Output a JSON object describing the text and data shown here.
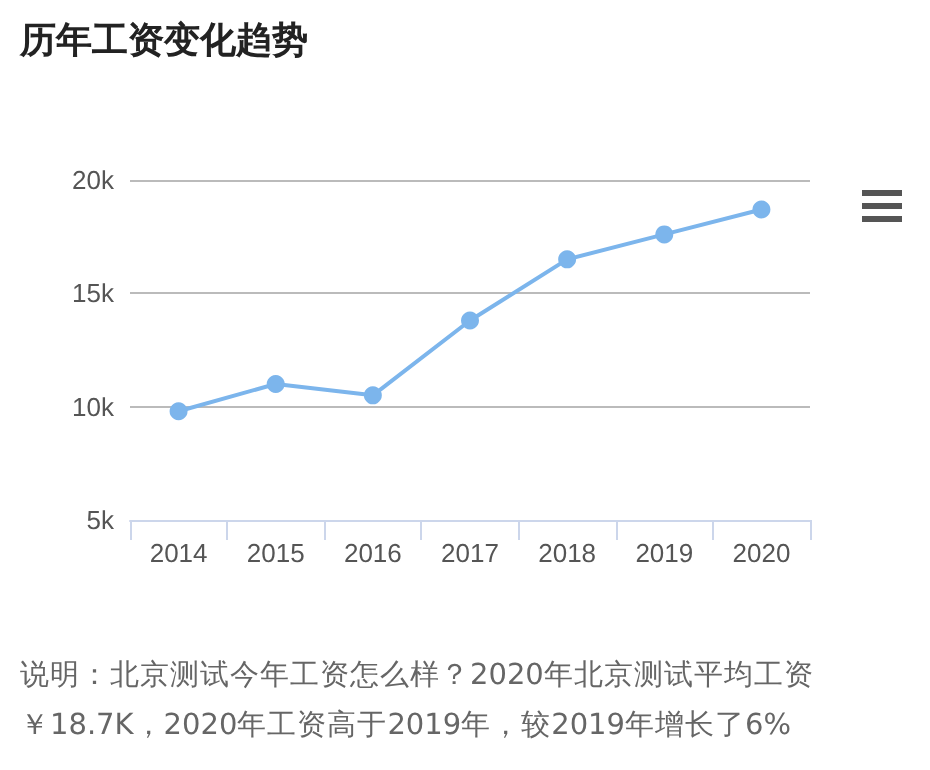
{
  "chart_data": {
    "type": "line",
    "title": "历年工资变化趋势",
    "categories": [
      "2014",
      "2015",
      "2016",
      "2017",
      "2018",
      "2019",
      "2020"
    ],
    "series": [
      {
        "color": "#7cb5ec",
        "values": [
          9800,
          11000,
          10500,
          13800,
          16500,
          17600,
          18700
        ]
      }
    ],
    "ylim": [
      5000,
      20000
    ],
    "yticks": [
      {
        "value": 5000,
        "label": "5k"
      },
      {
        "value": 10000,
        "label": "10k"
      },
      {
        "value": 15000,
        "label": "15k"
      },
      {
        "value": 20000,
        "label": "20k"
      }
    ],
    "grid": "y",
    "marker": "circle",
    "line_style": "solid",
    "annotations": [
      "说明：北京测试今年工资怎么样？2020年北京测试平均工资￥18.7K，2020年工资高于2019年，较2019年增长了6%"
    ]
  }
}
